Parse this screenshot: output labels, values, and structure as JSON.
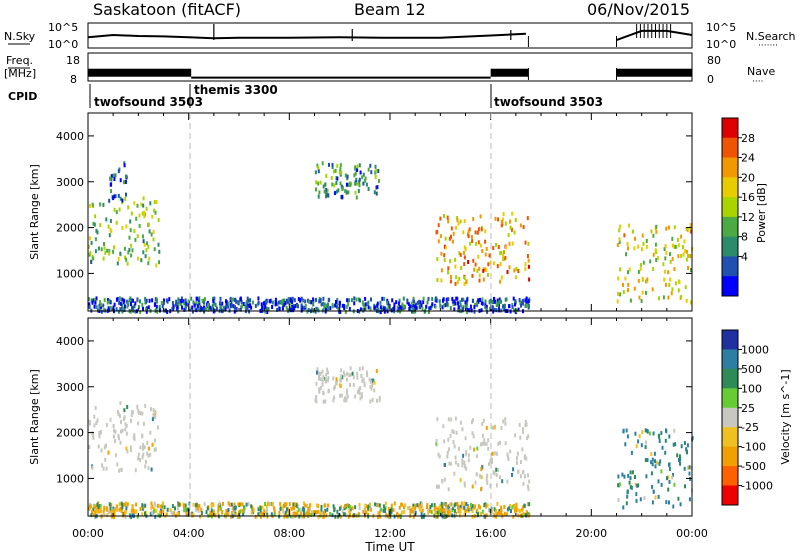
{
  "header": {
    "station": "Saskatoon (fitACF)",
    "beam": "Beam 12",
    "date": "06/Nov/2015"
  },
  "side_labels": {
    "nsky": "N.Sky",
    "freq_line1": "Freq.",
    "freq_line2": "[MHz]",
    "cpid": "CPID",
    "nsearch": "N.Search",
    "nave": "Nave",
    "dots": "·······",
    "dots_short": "····"
  },
  "ticks": {
    "noise_left": [
      "10^5",
      "10^0"
    ],
    "noise_right": [
      "10^5",
      "10^0"
    ],
    "freq_left": [
      "18",
      "8"
    ],
    "freq_right": [
      "80",
      "0"
    ],
    "range": [
      "1000",
      "2000",
      "3000",
      "4000"
    ],
    "time": [
      "00:00",
      "04:00",
      "08:00",
      "12:00",
      "16:00",
      "20:00",
      "00:00"
    ]
  },
  "cpid_segments": [
    {
      "label": "twofsound 3503"
    },
    {
      "label": "themis 3300"
    },
    {
      "label": "twofsound 3503"
    }
  ],
  "xlabel": "Time UT",
  "colorbars": [
    {
      "title": "Power [dB]",
      "labels": [
        "28",
        "24",
        "20",
        "16",
        "12",
        "8",
        "4"
      ],
      "colors": [
        "#dd0000",
        "#ee5500",
        "#f29900",
        "#e6cc00",
        "#aad400",
        "#4caa44",
        "#2c8b6a",
        "#2050b0",
        "#0000ff"
      ]
    },
    {
      "title": "Velocity [m s^-1]",
      "labels": [
        "1000",
        "500",
        "100",
        "25",
        "-25",
        "-100",
        "-500",
        "-1000"
      ],
      "colors": [
        "#2030a0",
        "#2c7fa0",
        "#2e8b57",
        "#66cc33",
        "#c8c8c0",
        "#f0c020",
        "#f0a000",
        "#ff6000",
        "#ee0000"
      ]
    }
  ],
  "chart_data": [
    {
      "type": "line",
      "title": "N.Sky / N.Search",
      "xlim": [
        0,
        24
      ],
      "ylim_log10": [
        0,
        5
      ],
      "series": [
        {
          "name": "N.Sky",
          "x": [
            0,
            1,
            2,
            3,
            4,
            5,
            6,
            8,
            10,
            12,
            14,
            16,
            17.4,
            21,
            22,
            23,
            24
          ],
          "values_log10": [
            2.1,
            2.6,
            2.4,
            2.3,
            2.1,
            1.9,
            2.0,
            2.0,
            2.1,
            2.0,
            2.0,
            2.5,
            2.9,
            1.5,
            3.5,
            3.5,
            2.6
          ]
        }
      ]
    },
    {
      "type": "line",
      "title": "Freq / Nave",
      "xlim": [
        0,
        24
      ],
      "ylim": [
        8,
        18
      ],
      "series": [
        {
          "name": "Freq.",
          "x": [
            0,
            4.1,
            4.1,
            16.0,
            16.0,
            17.5,
            21.0,
            24.0
          ],
          "values": [
            10.8,
            10.8,
            8.9,
            8.9,
            10.8,
            10.8,
            10.8,
            10.8
          ]
        }
      ]
    },
    {
      "type": "heatmap",
      "title": "Power [dB]",
      "xlabel": "Time UT",
      "ylabel": "Slant Range [km]",
      "xlim": [
        0,
        24
      ],
      "ylim": [
        180,
        4500
      ],
      "gaps": [
        [
          17.5,
          21.0
        ]
      ],
      "scatter_regions": [
        {
          "t0": 0.0,
          "t1": 2.8,
          "r0": 1200,
          "r1": 2700,
          "power": 14
        },
        {
          "t0": 0.8,
          "t1": 1.5,
          "r0": 2600,
          "r1": 3450,
          "power": 6
        },
        {
          "t0": 9.0,
          "t1": 11.6,
          "r0": 2700,
          "r1": 3450,
          "power": 10
        },
        {
          "t0": 13.8,
          "t1": 17.5,
          "r0": 800,
          "r1": 2350,
          "power": 22
        },
        {
          "t0": 21.0,
          "t1": 24.0,
          "r0": 400,
          "r1": 2100,
          "power": 18
        },
        {
          "t0": 0.0,
          "t1": 17.5,
          "r0": 200,
          "r1": 500,
          "power": 6
        }
      ]
    },
    {
      "type": "heatmap",
      "title": "Velocity [m s^-1]",
      "xlabel": "Time UT",
      "ylabel": "Slant Range [km]",
      "xlim": [
        0,
        24
      ],
      "ylim": [
        180,
        4500
      ],
      "gaps": [
        [
          17.5,
          21.0
        ]
      ],
      "scatter_regions": [
        {
          "t0": 0.0,
          "t1": 2.8,
          "r0": 1200,
          "r1": 2700,
          "velocity": 0
        },
        {
          "t0": 9.0,
          "t1": 11.6,
          "r0": 2700,
          "r1": 3450,
          "velocity": 0
        },
        {
          "t0": 13.8,
          "t1": 17.5,
          "r0": 800,
          "r1": 2350,
          "velocity": 0
        },
        {
          "t0": 21.0,
          "t1": 24.0,
          "r0": 400,
          "r1": 2100,
          "velocity": 150
        },
        {
          "t0": 0.0,
          "t1": 17.5,
          "r0": 200,
          "r1": 500,
          "velocity": -60
        }
      ]
    }
  ]
}
